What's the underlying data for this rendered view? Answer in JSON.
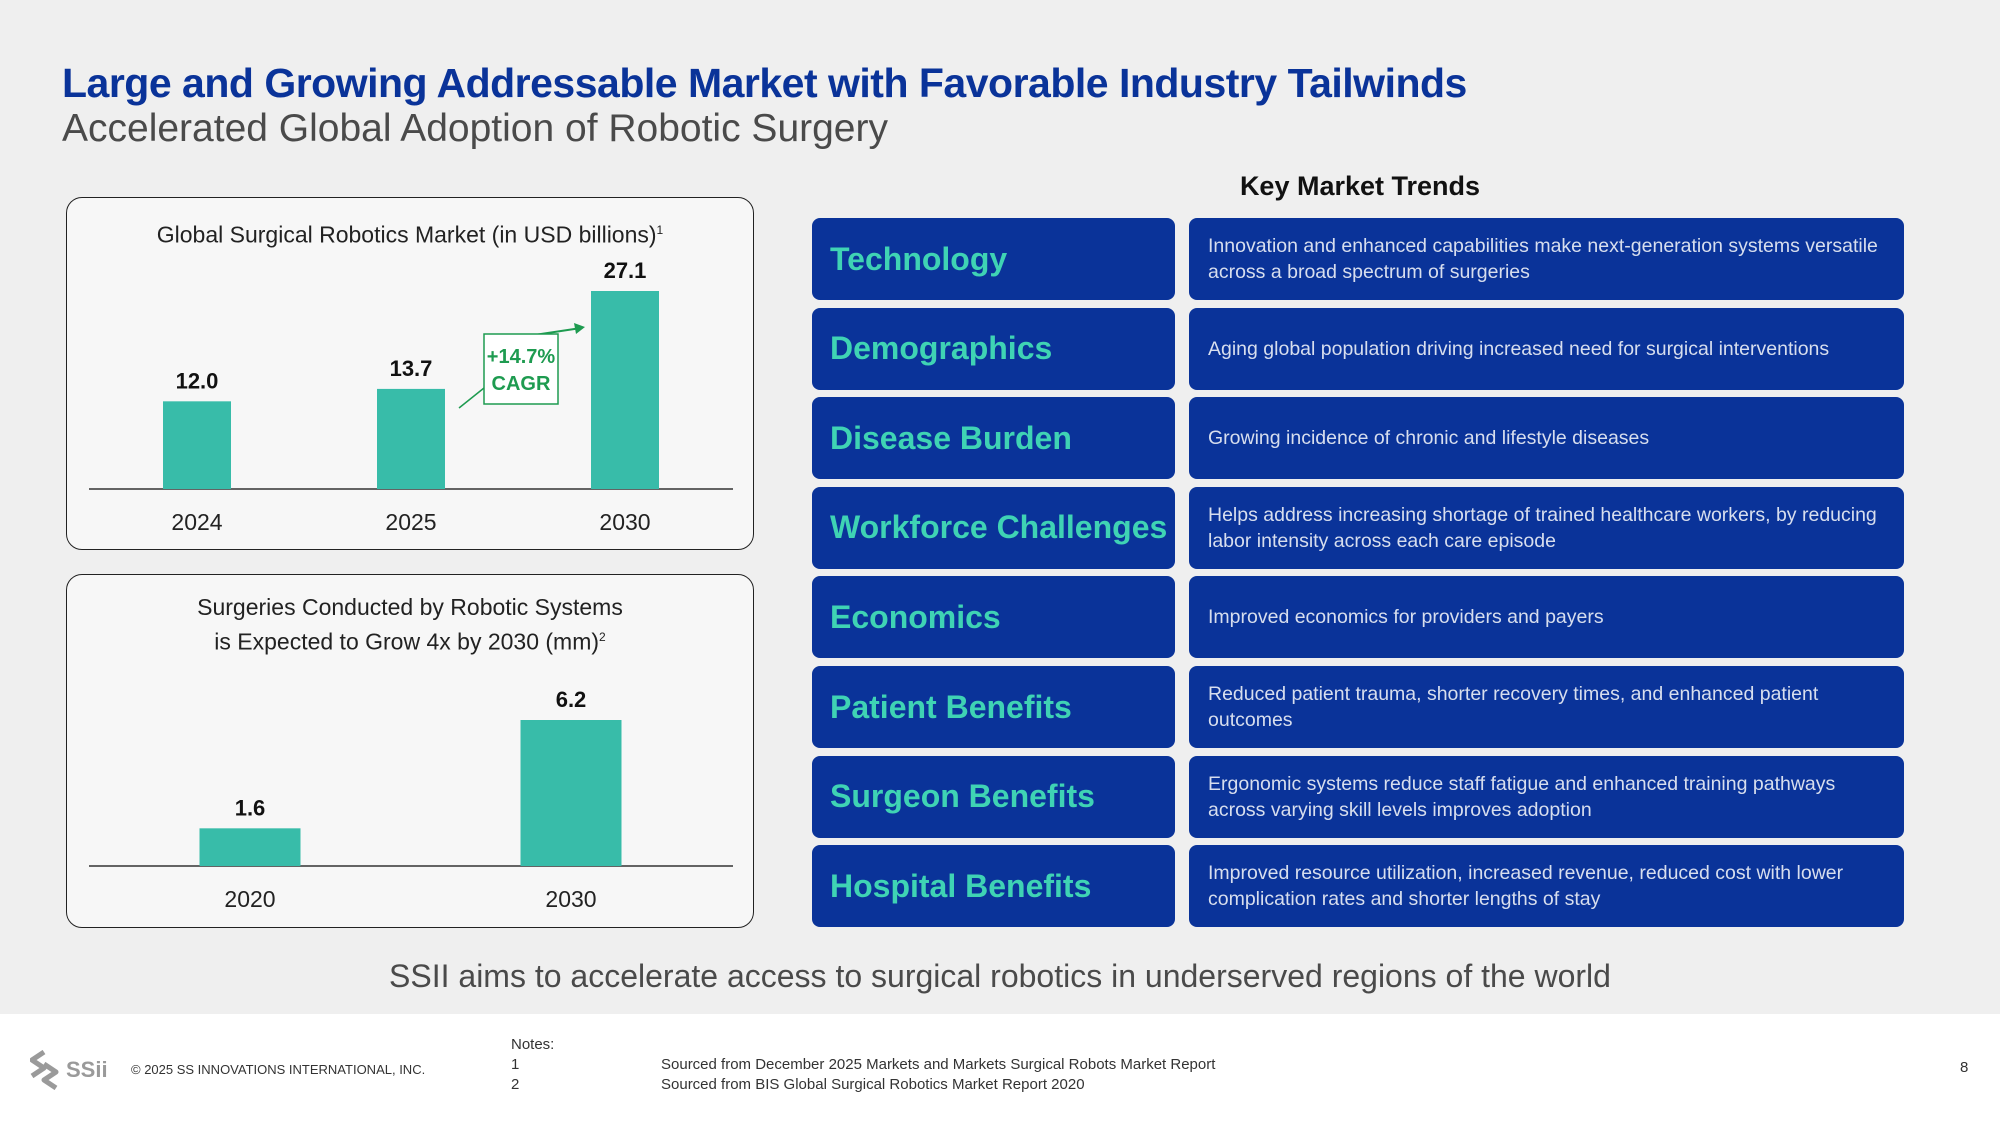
{
  "header": {
    "title": "Large and Growing Addressable Market with Favorable Industry Tailwinds",
    "subtitle": "Accelerated Global Adoption of Robotic Surgery"
  },
  "colors": {
    "brand_blue": "#0a3399",
    "teal": "#38bca9",
    "green": "#1e9b50"
  },
  "chart1_title": {
    "text": "Global Surgical Robotics Market (in USD billions)",
    "sup": "1"
  },
  "chart2_title": {
    "line1": "Surgeries Conducted by Robotic Systems",
    "line2": "is Expected to Grow 4x by 2030 (mm)",
    "sup": "2"
  },
  "cagr": {
    "line1": "+14.7%",
    "line2": "CAGR"
  },
  "chart_data": [
    {
      "type": "bar",
      "title": "Global Surgical Robotics Market (in USD billions)",
      "categories": [
        "2024",
        "2025",
        "2030"
      ],
      "values": [
        12.0,
        13.7,
        27.1
      ],
      "labels": [
        "12.0",
        "13.7",
        "27.1"
      ],
      "ylim": [
        0,
        27.1
      ],
      "annotation": "+14.7% CAGR"
    },
    {
      "type": "bar",
      "title": "Surgeries Conducted by Robotic Systems is Expected to Grow 4x by 2030 (mm)",
      "categories": [
        "2020",
        "2030"
      ],
      "values": [
        1.6,
        6.2
      ],
      "labels": [
        "1.6",
        "6.2"
      ],
      "ylim": [
        0,
        6.2
      ]
    }
  ],
  "trends": {
    "heading": "Key Market Trends",
    "items": [
      {
        "name": "Technology",
        "desc": "Innovation and enhanced capabilities make next-generation systems versatile across a broad spectrum of surgeries"
      },
      {
        "name": "Demographics",
        "desc": "Aging global population driving increased need for surgical interventions"
      },
      {
        "name": "Disease Burden",
        "desc": "Growing incidence of chronic and lifestyle diseases"
      },
      {
        "name": "Workforce Challenges",
        "desc": "Helps address increasing shortage of trained healthcare workers, by reducing labor intensity across each care episode"
      },
      {
        "name": "Economics",
        "desc": "Improved economics for providers and payers"
      },
      {
        "name": "Patient Benefits",
        "desc": "Reduced patient trauma, shorter recovery times, and enhanced patient outcomes"
      },
      {
        "name": "Surgeon Benefits",
        "desc": "Ergonomic systems reduce staff fatigue and enhanced training pathways across varying skill levels improves adoption"
      },
      {
        "name": "Hospital Benefits",
        "desc": "Improved resource utilization,  increased revenue, reduced cost with lower complication rates and shorter lengths of stay"
      }
    ]
  },
  "tagline": "SSII aims to accelerate access to surgical robotics in underserved regions of the world",
  "footer": {
    "logo_text": "SSii",
    "copyright": "© 2025 SS INNOVATIONS INTERNATIONAL, INC.",
    "notes_label": "Notes:",
    "notes": [
      {
        "num": "1",
        "text": "Sourced from December 2025 Markets and Markets Surgical Robots Market Report"
      },
      {
        "num": "2",
        "text": "Sourced from BIS Global Surgical Robotics Market Report 2020"
      }
    ],
    "page_number": "8"
  }
}
